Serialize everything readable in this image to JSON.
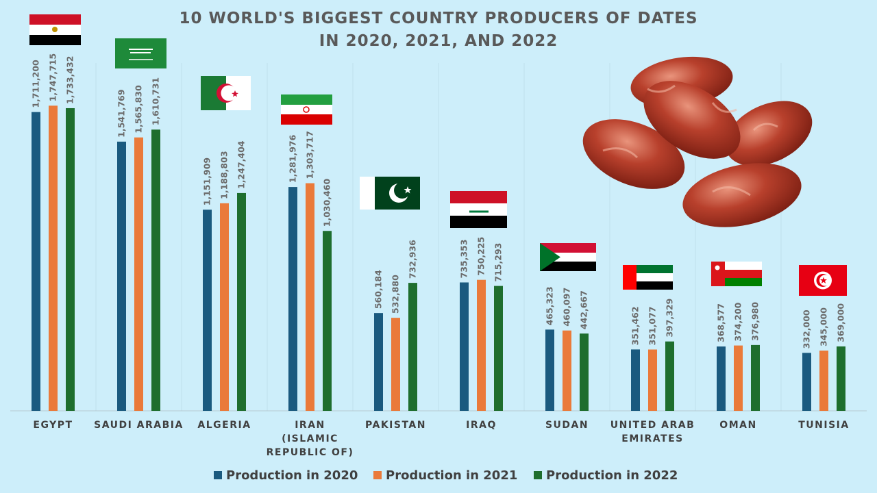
{
  "colors": {
    "background": "#cdeefa",
    "series": [
      "#1a5a7f",
      "#ea7a3a",
      "#1e6e2e"
    ]
  },
  "chart_data": {
    "type": "bar",
    "title": "10 WORLD'S BIGGEST COUNTRY PRODUCERS OF DATES IN 2020, 2021, AND 2022",
    "title_lines": [
      "10 WORLD'S BIGGEST COUNTRY PRODUCERS OF DATES",
      "IN 2020, 2021, AND 2022"
    ],
    "categories": [
      "EGYPT",
      "SAUDI ARABIA",
      "ALGERIA",
      "IRAN (ISLAMIC REPUBLIC OF)",
      "PAKISTAN",
      "IRAQ",
      "SUDAN",
      "UNITED ARAB EMIRATES",
      "OMAN",
      "TUNISIA"
    ],
    "category_lines": [
      [
        "EGYPT"
      ],
      [
        "SAUDI ARABIA"
      ],
      [
        "ALGERIA"
      ],
      [
        "IRAN",
        "(ISLAMIC",
        "REPUBLIC OF)"
      ],
      [
        "PAKISTAN"
      ],
      [
        "IRAQ"
      ],
      [
        "SUDAN"
      ],
      [
        "UNITED ARAB",
        "EMIRATES"
      ],
      [
        "OMAN"
      ],
      [
        "TUNISIA"
      ]
    ],
    "series": [
      {
        "name": "Production in 2020",
        "values": [
          1711200,
          1541769,
          1151909,
          1281976,
          560184,
          735353,
          465323,
          351462,
          368577,
          332000
        ],
        "labels": [
          "1,711,200",
          "1,541,769",
          "1,151,909",
          "1,281,976",
          "560,184",
          "735,353",
          "465,323",
          "351,462",
          "368,577",
          "332,000"
        ]
      },
      {
        "name": "Production in 2021",
        "values": [
          1747715,
          1565830,
          1188803,
          1303717,
          532880,
          750225,
          460097,
          351077,
          374200,
          345000
        ],
        "labels": [
          "1,747,715",
          "1,565,830",
          "1,188,803",
          "1,303,717",
          "532,880",
          "750,225",
          "460,097",
          "351,077",
          "374,200",
          "345,000"
        ]
      },
      {
        "name": "Production in 2022",
        "values": [
          1733432,
          1610731,
          1247404,
          1030460,
          732936,
          715293,
          442667,
          397329,
          376980,
          369000
        ],
        "labels": [
          "1,733,432",
          "1,610,731",
          "1,247,404",
          "1,030,460",
          "732,936",
          "715,293",
          "442,667",
          "397,329",
          "376,980",
          "369,000"
        ]
      }
    ],
    "ylim": [
      0,
      2000000
    ],
    "grid": false,
    "legend": "bottom",
    "flags": [
      "egypt-flag",
      "saudi-arabia-flag",
      "algeria-flag",
      "iran-flag",
      "pakistan-flag",
      "iraq-flag",
      "sudan-flag",
      "uae-flag",
      "oman-flag",
      "tunisia-flag"
    ]
  }
}
